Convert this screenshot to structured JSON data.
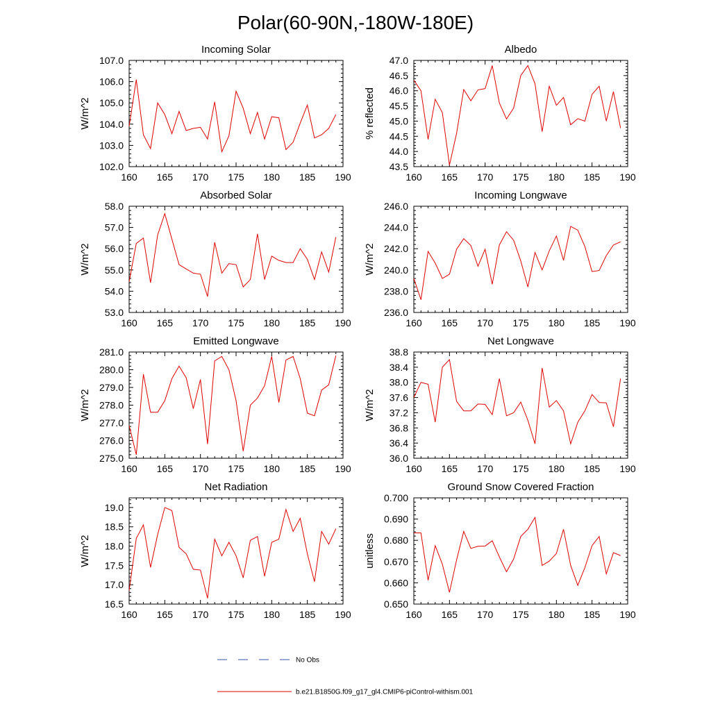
{
  "title": "Polar(60-90N,-180W-180E)",
  "legend": [
    {
      "label": "No Obs",
      "color": "#3b4fa8",
      "dash": true
    },
    {
      "label": "b.e21.B1850G.f09_g17_gl4.CMIP6-piControl-withism.001",
      "color": "#e00000",
      "dash": false
    }
  ],
  "chart_data": [
    {
      "type": "line",
      "title": "Incoming Solar",
      "ylabel": "W/m^2",
      "xlim": [
        160,
        190
      ],
      "xticks": [
        160,
        165,
        170,
        175,
        180,
        185,
        190
      ],
      "ylim": [
        102.0,
        107.0
      ],
      "yticks": [
        "102.0",
        "103.0",
        "104.0",
        "105.0",
        "106.0",
        "107.0"
      ],
      "x": [
        160,
        161,
        162,
        163,
        164,
        165,
        166,
        167,
        168,
        169,
        170,
        171,
        172,
        173,
        174,
        175,
        176,
        177,
        178,
        179,
        180,
        181,
        182,
        183,
        184,
        185,
        186,
        187,
        188,
        189
      ],
      "values": [
        103.9,
        106.1,
        103.5,
        102.85,
        105.0,
        104.45,
        103.55,
        104.6,
        103.7,
        103.8,
        103.85,
        103.3,
        105.05,
        102.7,
        103.45,
        105.55,
        104.75,
        103.55,
        104.55,
        103.3,
        104.35,
        104.3,
        102.8,
        103.15,
        104.05,
        104.9,
        103.35,
        103.5,
        103.8,
        104.45
      ],
      "series_name": "b.e21.B1850G.f09_g17_gl4.CMIP6-piControl-withism.001"
    },
    {
      "type": "line",
      "title": "Albedo",
      "ylabel": "% reflected",
      "xlim": [
        160,
        190
      ],
      "xticks": [
        160,
        165,
        170,
        175,
        180,
        185,
        190
      ],
      "ylim": [
        43.5,
        47.0
      ],
      "yticks": [
        "43.5",
        "44.0",
        "44.5",
        "45.0",
        "45.5",
        "46.0",
        "46.5",
        "47.0"
      ],
      "x": [
        160,
        161,
        162,
        163,
        164,
        165,
        166,
        167,
        168,
        169,
        170,
        171,
        172,
        173,
        174,
        175,
        176,
        177,
        178,
        179,
        180,
        181,
        182,
        183,
        184,
        185,
        186,
        187,
        188,
        189
      ],
      "values": [
        46.35,
        46.0,
        44.4,
        45.72,
        45.28,
        43.55,
        44.6,
        46.04,
        45.67,
        46.03,
        46.07,
        46.83,
        45.6,
        45.07,
        45.43,
        46.5,
        46.83,
        46.23,
        44.65,
        46.15,
        45.52,
        45.78,
        44.88,
        45.08,
        45.0,
        45.88,
        46.15,
        45.0,
        45.97,
        44.77
      ],
      "series_name": "b.e21.B1850G.f09_g17_gl4.CMIP6-piControl-withism.001"
    },
    {
      "type": "line",
      "title": "Absorbed Solar",
      "ylabel": "W/m^2",
      "xlim": [
        160,
        190
      ],
      "xticks": [
        160,
        165,
        170,
        175,
        180,
        185,
        190
      ],
      "ylim": [
        53.0,
        58.0
      ],
      "yticks": [
        "53.0",
        "54.0",
        "55.0",
        "56.0",
        "57.0",
        "58.0"
      ],
      "x": [
        160,
        161,
        162,
        163,
        164,
        165,
        166,
        167,
        168,
        169,
        170,
        171,
        172,
        173,
        174,
        175,
        176,
        177,
        178,
        179,
        180,
        181,
        182,
        183,
        184,
        185,
        186,
        187,
        188,
        189
      ],
      "values": [
        54.45,
        56.25,
        56.5,
        54.4,
        56.65,
        57.65,
        56.45,
        55.25,
        55.05,
        54.85,
        54.8,
        53.75,
        56.3,
        54.85,
        55.3,
        55.25,
        54.2,
        54.55,
        56.7,
        54.55,
        55.65,
        55.45,
        55.35,
        55.35,
        56.0,
        55.5,
        54.55,
        55.85,
        54.9,
        56.55
      ],
      "series_name": "b.e21.B1850G.f09_g17_gl4.CMIP6-piControl-withism.001"
    },
    {
      "type": "line",
      "title": "Incoming Longwave",
      "ylabel": "W/m^2",
      "xlim": [
        160,
        190
      ],
      "xticks": [
        160,
        165,
        170,
        175,
        180,
        185,
        190
      ],
      "ylim": [
        236.0,
        246.0
      ],
      "yticks": [
        "236.0",
        "238.0",
        "240.0",
        "242.0",
        "244.0",
        "246.0"
      ],
      "x": [
        160,
        161,
        162,
        163,
        164,
        165,
        166,
        167,
        168,
        169,
        170,
        171,
        172,
        173,
        174,
        175,
        176,
        177,
        178,
        179,
        180,
        181,
        182,
        183,
        184,
        185,
        186,
        187,
        188,
        189
      ],
      "values": [
        239.2,
        237.2,
        241.75,
        240.65,
        239.2,
        239.6,
        241.95,
        242.95,
        242.3,
        240.35,
        241.95,
        238.65,
        242.35,
        243.6,
        242.8,
        240.85,
        238.4,
        241.65,
        240.0,
        241.8,
        243.2,
        240.9,
        244.1,
        243.75,
        242.2,
        239.85,
        239.95,
        241.35,
        242.35,
        242.65
      ],
      "series_name": "b.e21.B1850G.f09_g17_gl4.CMIP6-piControl-withism.001"
    },
    {
      "type": "line",
      "title": "Emitted Longwave",
      "ylabel": "W/m^2",
      "xlim": [
        160,
        190
      ],
      "xticks": [
        160,
        165,
        170,
        175,
        180,
        185,
        190
      ],
      "ylim": [
        275.0,
        281.0
      ],
      "yticks": [
        "275.0",
        "276.0",
        "277.0",
        "278.0",
        "279.0",
        "280.0",
        "281.0"
      ],
      "x": [
        160,
        161,
        162,
        163,
        164,
        165,
        166,
        167,
        168,
        169,
        170,
        171,
        172,
        173,
        174,
        175,
        176,
        177,
        178,
        179,
        180,
        181,
        182,
        183,
        184,
        185,
        186,
        187,
        188,
        189
      ],
      "values": [
        276.85,
        275.2,
        279.75,
        277.6,
        277.6,
        278.25,
        279.5,
        280.2,
        279.55,
        277.8,
        279.45,
        275.8,
        280.5,
        280.75,
        280.0,
        278.25,
        275.4,
        278.0,
        278.4,
        279.1,
        280.75,
        278.15,
        280.55,
        280.75,
        279.5,
        277.55,
        277.4,
        278.85,
        279.15,
        280.8
      ],
      "series_name": "b.e21.B1850G.f09_g17_gl4.CMIP6-piControl-withism.001"
    },
    {
      "type": "line",
      "title": "Net Longwave",
      "ylabel": "W/m^2",
      "xlim": [
        160,
        190
      ],
      "xticks": [
        160,
        165,
        170,
        175,
        180,
        185,
        190
      ],
      "ylim": [
        36.0,
        38.8
      ],
      "yticks": [
        "36.0",
        "36.4",
        "36.8",
        "37.2",
        "37.6",
        "38.0",
        "38.4",
        "38.8"
      ],
      "x": [
        160,
        161,
        162,
        163,
        164,
        165,
        166,
        167,
        168,
        169,
        170,
        171,
        172,
        173,
        174,
        175,
        176,
        177,
        178,
        179,
        180,
        181,
        182,
        183,
        184,
        185,
        186,
        187,
        188,
        189
      ],
      "values": [
        37.6,
        38.0,
        37.95,
        36.95,
        38.4,
        38.6,
        37.5,
        37.25,
        37.25,
        37.43,
        37.42,
        37.15,
        38.1,
        37.12,
        37.2,
        37.48,
        37.0,
        36.38,
        38.38,
        37.35,
        37.52,
        37.25,
        36.38,
        36.95,
        37.25,
        37.68,
        37.47,
        37.46,
        36.83,
        38.1
      ],
      "series_name": "b.e21.B1850G.f09_g17_gl4.CMIP6-piControl-withism.001"
    },
    {
      "type": "line",
      "title": "Net Radiation",
      "ylabel": "W/m^2",
      "xlim": [
        160,
        190
      ],
      "xticks": [
        160,
        165,
        170,
        175,
        180,
        185,
        190
      ],
      "ylim": [
        16.5,
        19.25
      ],
      "yticks": [
        "16.5",
        "17.0",
        "17.5",
        "18.0",
        "18.5",
        "19.0"
      ],
      "x": [
        160,
        161,
        162,
        163,
        164,
        165,
        166,
        167,
        168,
        169,
        170,
        171,
        172,
        173,
        174,
        175,
        176,
        177,
        178,
        179,
        180,
        181,
        182,
        183,
        184,
        185,
        186,
        187,
        188,
        189
      ],
      "values": [
        16.85,
        18.2,
        18.55,
        17.45,
        18.3,
        19.0,
        18.92,
        17.97,
        17.8,
        17.4,
        17.38,
        16.65,
        18.18,
        17.75,
        18.1,
        17.75,
        17.18,
        18.15,
        18.25,
        17.22,
        18.1,
        18.18,
        18.95,
        18.38,
        18.72,
        17.8,
        17.08,
        18.38,
        18.05,
        18.45
      ],
      "series_name": "b.e21.B1850G.f09_g17_gl4.CMIP6-piControl-withism.001"
    },
    {
      "type": "line",
      "title": "Ground Snow Covered Fraction",
      "ylabel": "unitless",
      "xlim": [
        160,
        190
      ],
      "xticks": [
        160,
        165,
        170,
        175,
        180,
        185,
        190
      ],
      "ylim": [
        0.65,
        0.7
      ],
      "yticks": [
        "0.650",
        "0.660",
        "0.670",
        "0.680",
        "0.690",
        "0.700"
      ],
      "x": [
        160,
        161,
        162,
        163,
        164,
        165,
        166,
        167,
        168,
        169,
        170,
        171,
        172,
        173,
        174,
        175,
        176,
        177,
        178,
        179,
        180,
        181,
        182,
        183,
        184,
        185,
        186,
        187,
        188,
        189
      ],
      "values": [
        0.6835,
        0.6835,
        0.6612,
        0.6775,
        0.6688,
        0.6555,
        0.6708,
        0.6842,
        0.6762,
        0.6772,
        0.6773,
        0.6798,
        0.6722,
        0.6652,
        0.6712,
        0.6818,
        0.6852,
        0.6908,
        0.6682,
        0.6702,
        0.6738,
        0.6852,
        0.6682,
        0.6588,
        0.6672,
        0.6775,
        0.6818,
        0.6642,
        0.6742,
        0.6728
      ],
      "series_name": "b.e21.B1850G.f09_g17_gl4.CMIP6-piControl-withism.001"
    }
  ]
}
